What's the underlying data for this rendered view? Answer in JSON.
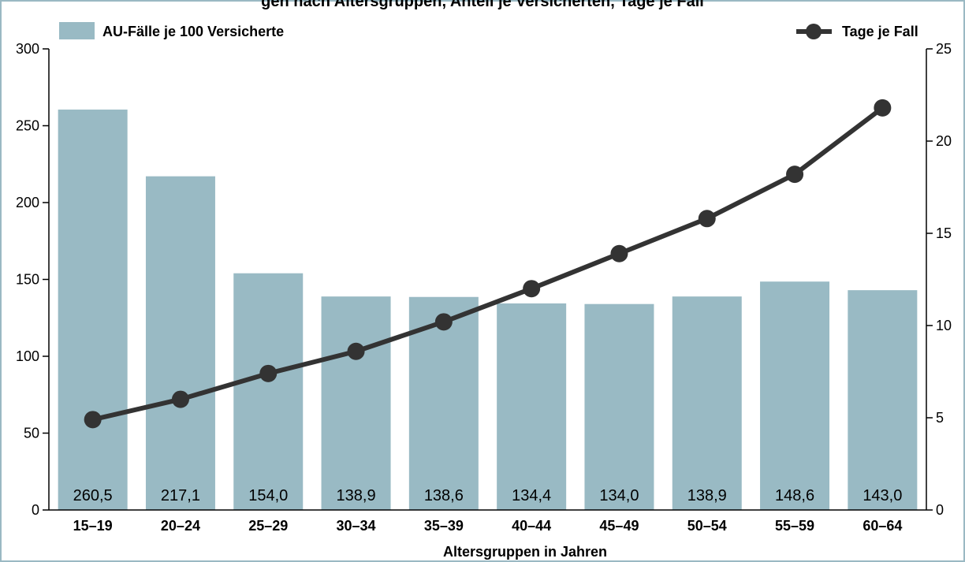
{
  "chart_data": {
    "type": "bar",
    "title": "gen nach Altersgruppen, Anteil je Versicherten, Tage je Fall",
    "categories": [
      "15–19",
      "20–24",
      "25–29",
      "30–34",
      "35–39",
      "40–44",
      "45–49",
      "50–54",
      "55–59",
      "60–64"
    ],
    "xlabel": "Altersgruppen in Jahren",
    "ylim": [
      0,
      300
    ],
    "yticks": [
      0,
      50,
      100,
      150,
      200,
      250,
      300
    ],
    "y2lim": [
      0,
      25
    ],
    "y2ticks": [
      "0",
      "5",
      "10",
      "15",
      "20",
      "25"
    ],
    "legend_placement": "top",
    "grid": false,
    "series": [
      {
        "name": "AU-Fälle je 100 Versicherte",
        "type": "bar",
        "axis": "left",
        "color": "#99bac4",
        "values": [
          260.5,
          217.1,
          154.0,
          138.9,
          138.6,
          134.4,
          134.0,
          138.9,
          148.6,
          143.0
        ],
        "labels": [
          "260,5",
          "217,1",
          "154,0",
          "138,9",
          "138,6",
          "134,4",
          "134,0",
          "138,9",
          "148,6",
          "143,0"
        ]
      },
      {
        "name": "Tage je Fall",
        "type": "line",
        "axis": "right",
        "color": "#333333",
        "values": [
          4.9,
          6.0,
          7.4,
          8.6,
          10.2,
          12.0,
          13.9,
          15.8,
          18.2,
          21.8
        ]
      }
    ]
  }
}
